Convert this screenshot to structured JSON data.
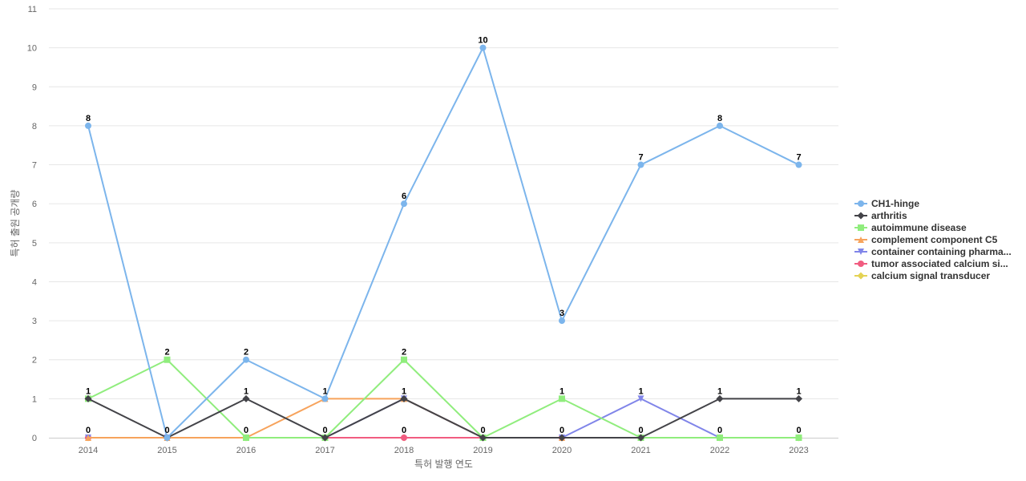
{
  "chart_data": {
    "type": "line",
    "title": "",
    "xlabel": "특허 발행 연도",
    "ylabel": "특허 출원 공개량",
    "ylim": [
      0,
      11
    ],
    "yticks": [
      0,
      1,
      2,
      3,
      4,
      5,
      6,
      7,
      8,
      9,
      10,
      11
    ],
    "categories": [
      "2014",
      "2015",
      "2016",
      "2017",
      "2018",
      "2019",
      "2020",
      "2021",
      "2022",
      "2023"
    ],
    "grid": true,
    "legend_position": "right",
    "series": [
      {
        "name": "CH1-hinge",
        "color": "#7cb5ec",
        "marker": "circle",
        "values": [
          8,
          0,
          2,
          1,
          6,
          10,
          3,
          7,
          8,
          7
        ]
      },
      {
        "name": "arthritis",
        "color": "#434348",
        "marker": "diamond",
        "values": [
          1,
          0,
          1,
          0,
          1,
          0,
          0,
          0,
          1,
          1
        ]
      },
      {
        "name": "autoimmune disease",
        "color": "#90ed7d",
        "marker": "square",
        "values": [
          1,
          2,
          0,
          0,
          2,
          0,
          1,
          0,
          0,
          0
        ]
      },
      {
        "name": "complement component C5",
        "color": "#f7a35c",
        "marker": "triangle",
        "values": [
          0,
          0,
          0,
          1,
          1,
          0,
          0,
          0,
          0,
          0
        ]
      },
      {
        "name": "container containing pharma...",
        "color": "#8085e9",
        "marker": "triangle-down",
        "values": [
          0,
          0,
          0,
          0,
          1,
          0,
          0,
          1,
          0,
          0
        ]
      },
      {
        "name": "tumor associated calcium si...",
        "color": "#f15c80",
        "marker": "circle",
        "values": [
          0,
          0,
          0,
          0,
          0,
          0,
          0,
          0,
          0,
          0
        ]
      },
      {
        "name": "calcium signal transducer",
        "color": "#e4d354",
        "marker": "diamond",
        "values": [
          0,
          0,
          0,
          0,
          0,
          0,
          0,
          0,
          0,
          0
        ]
      }
    ],
    "data_labels": [
      {
        "category": "2014",
        "labels": [
          "8",
          "1",
          "0"
        ]
      },
      {
        "category": "2015",
        "labels": [
          "2",
          "0"
        ]
      },
      {
        "category": "2016",
        "labels": [
          "2",
          "1",
          "0"
        ]
      },
      {
        "category": "2017",
        "labels": [
          "1",
          "0"
        ]
      },
      {
        "category": "2018",
        "labels": [
          "6",
          "2",
          "1",
          "0"
        ]
      },
      {
        "category": "2019",
        "labels": [
          "10",
          "0"
        ]
      },
      {
        "category": "2020",
        "labels": [
          "3",
          "1",
          "0"
        ]
      },
      {
        "category": "2021",
        "labels": [
          "7",
          "1",
          "0"
        ]
      },
      {
        "category": "2022",
        "labels": [
          "8",
          "1",
          "0"
        ]
      },
      {
        "category": "2023",
        "labels": [
          "7",
          "1",
          "0"
        ]
      }
    ]
  }
}
